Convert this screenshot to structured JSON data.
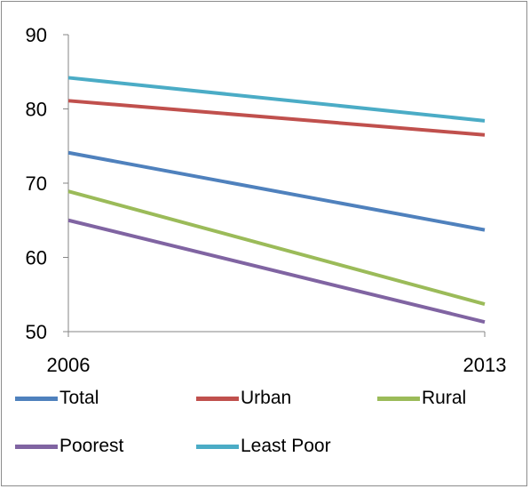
{
  "chart_data": {
    "type": "line",
    "title": "",
    "xlabel": "",
    "ylabel": "",
    "categories": [
      "2006",
      "2013"
    ],
    "ylim": [
      50,
      90
    ],
    "yticks": [
      50,
      60,
      70,
      80,
      90
    ],
    "grid": false,
    "legend_position": "bottom",
    "series": [
      {
        "name": "Total",
        "values": [
          74.1,
          63.7
        ],
        "color": "#4f81bd"
      },
      {
        "name": "Urban",
        "values": [
          81.1,
          76.5
        ],
        "color": "#c0504d"
      },
      {
        "name": "Rural",
        "values": [
          68.9,
          53.7
        ],
        "color": "#9bbb59"
      },
      {
        "name": "Poorest",
        "values": [
          65.0,
          51.3
        ],
        "color": "#8064a2"
      },
      {
        "name": "Least Poor",
        "values": [
          84.2,
          78.4
        ],
        "color": "#4bacc6"
      }
    ]
  }
}
